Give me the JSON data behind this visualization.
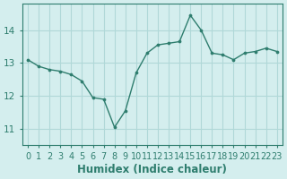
{
  "x": [
    0,
    1,
    2,
    3,
    4,
    5,
    6,
    7,
    8,
    9,
    10,
    11,
    12,
    13,
    14,
    15,
    16,
    17,
    18,
    19,
    20,
    21,
    22,
    23
  ],
  "y": [
    13.1,
    12.9,
    12.8,
    12.75,
    12.65,
    12.45,
    11.95,
    11.9,
    11.05,
    11.55,
    12.7,
    13.3,
    13.55,
    13.6,
    13.65,
    14.45,
    14.0,
    13.3,
    13.25,
    13.1,
    13.3,
    13.35,
    13.45,
    13.35
  ],
  "line_color": "#2e7d6e",
  "marker_color": "#2e7d6e",
  "bg_color": "#d4eeee",
  "grid_color": "#b0d8d8",
  "axis_label_color": "#2e7d6e",
  "tick_color": "#2e7d6e",
  "xlabel": "Humidex (Indice chaleur)",
  "ylim": [
    10.5,
    14.8
  ],
  "yticks": [
    11,
    12,
    13,
    14
  ],
  "xtick_labels": [
    "0",
    "1",
    "2",
    "3",
    "4",
    "5",
    "6",
    "7",
    "8",
    "9",
    "10",
    "11",
    "12",
    "13",
    "14",
    "15",
    "16",
    "17",
    "18",
    "19",
    "20",
    "21",
    "22",
    "23"
  ],
  "font_size": 7.5,
  "label_font_size": 8.5
}
